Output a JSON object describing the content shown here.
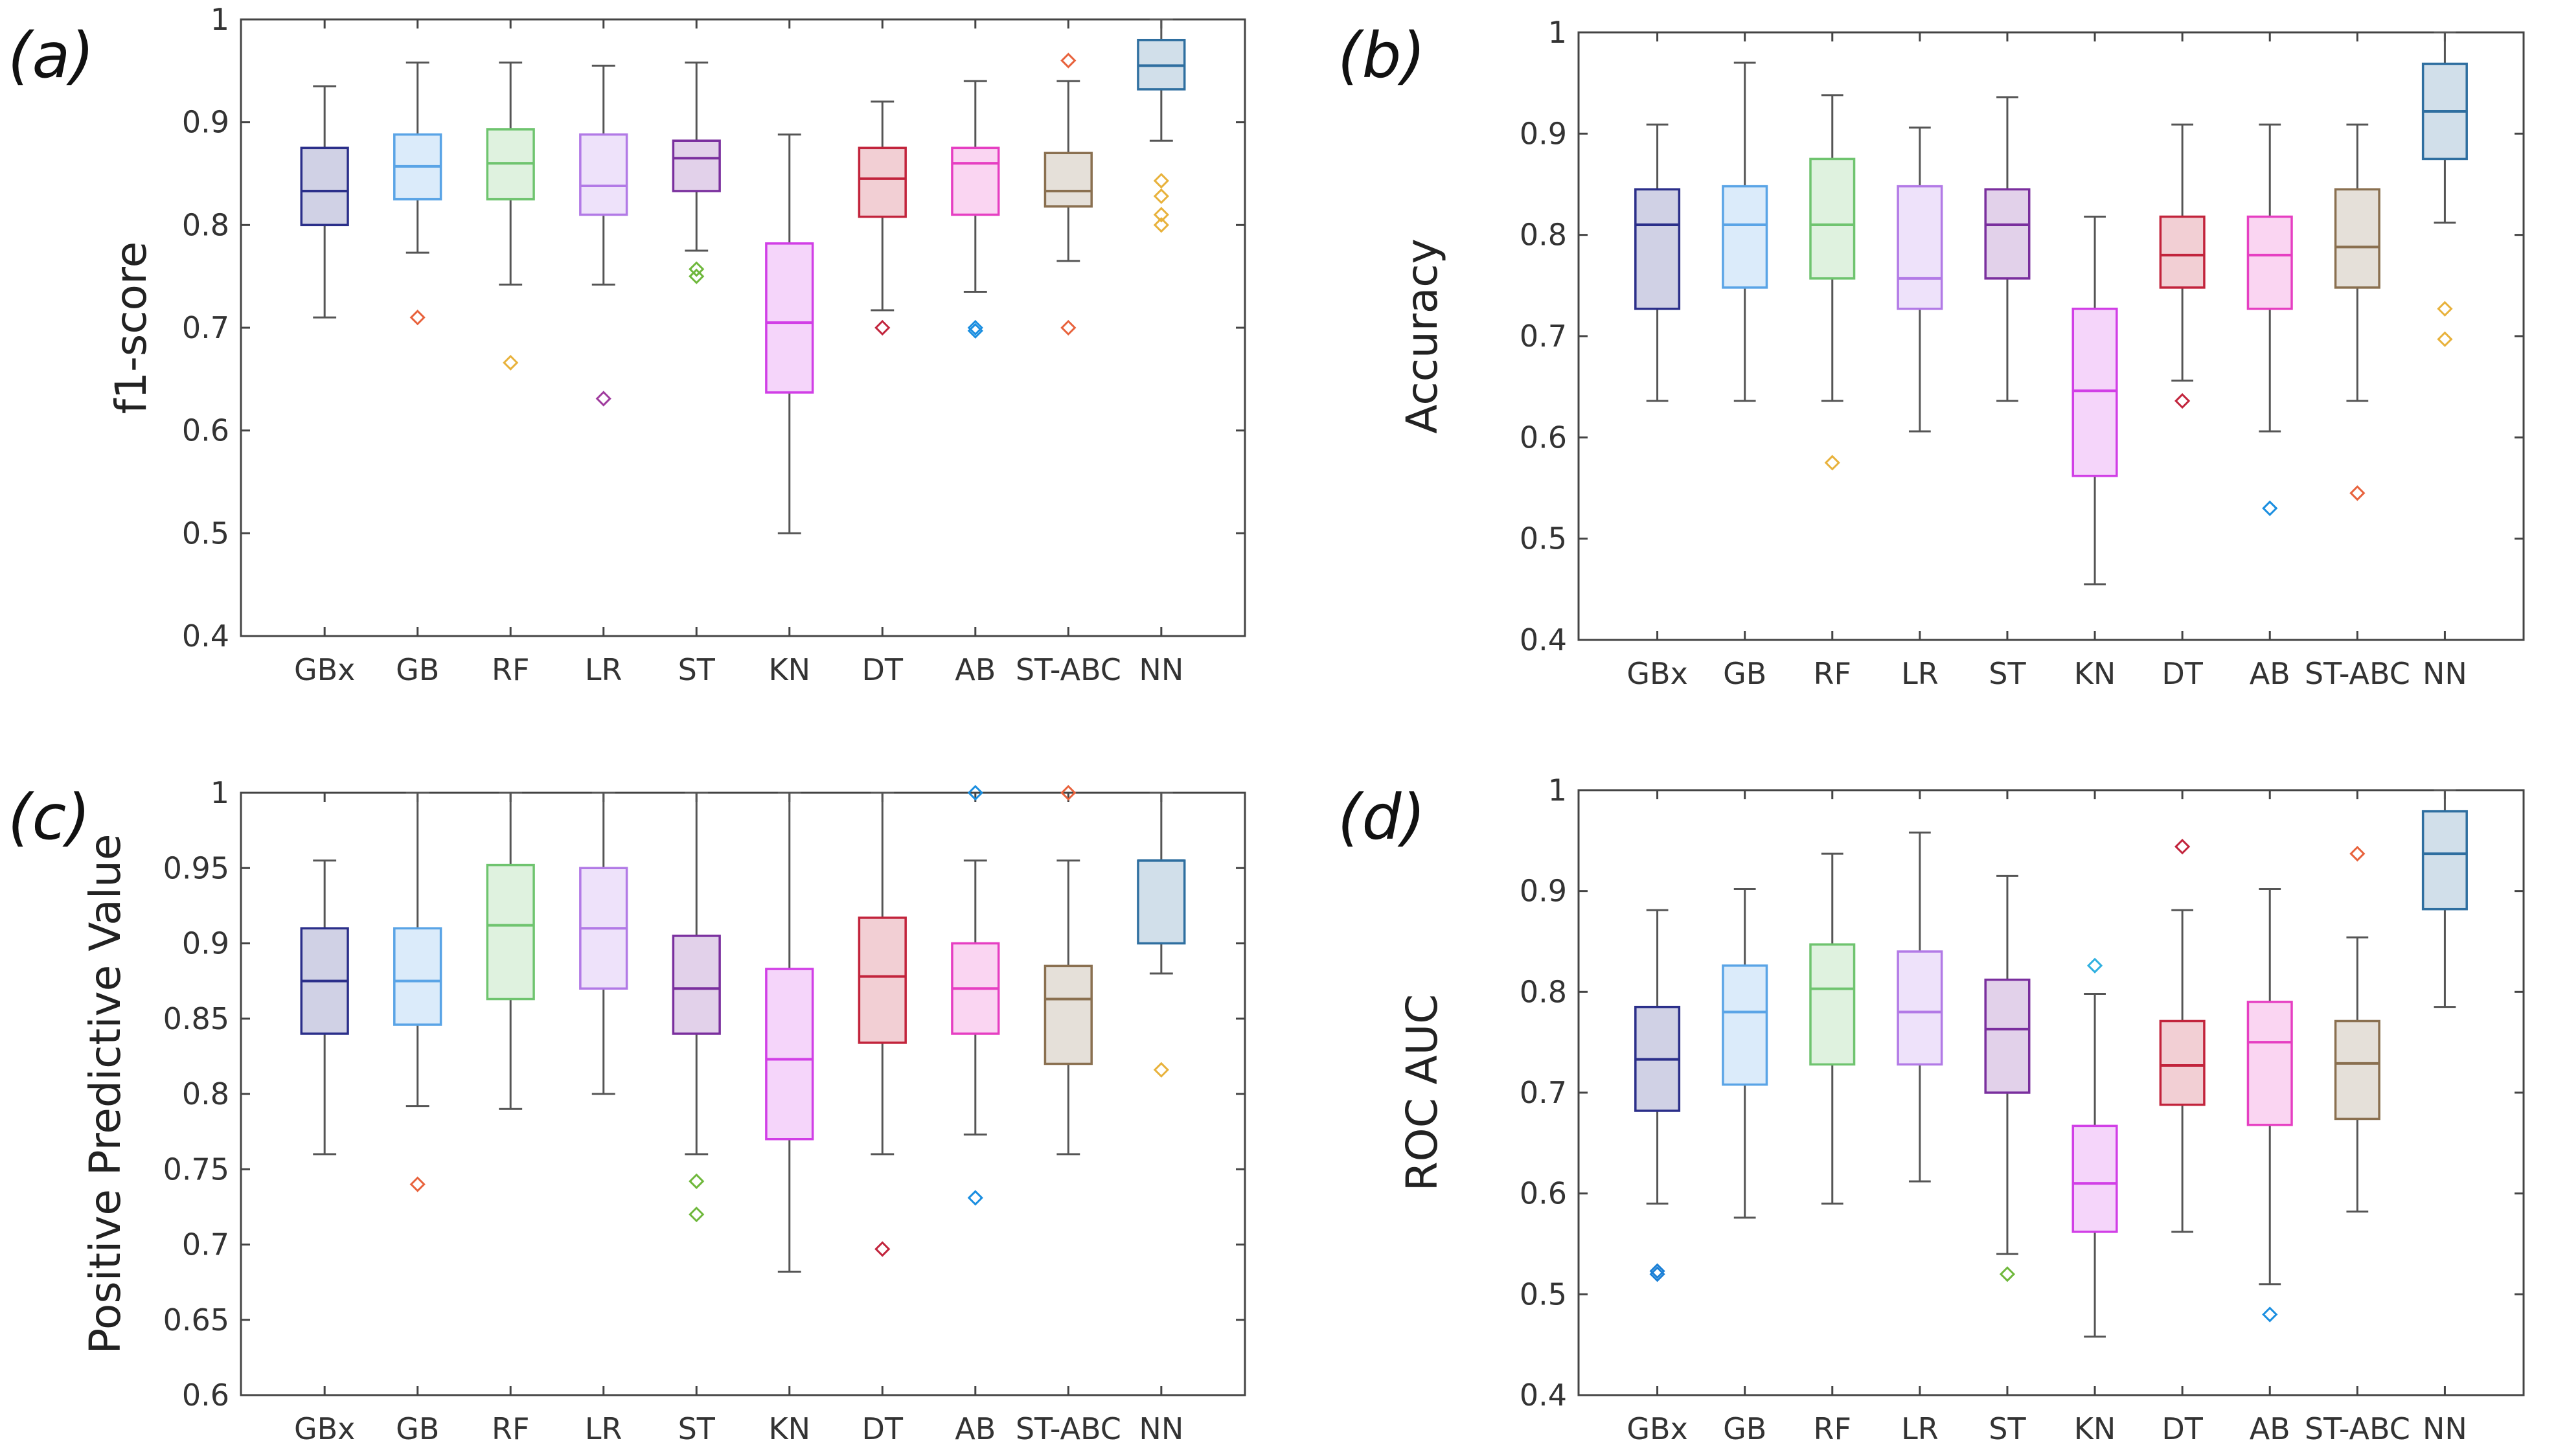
{
  "colors": {
    "GBx": "#2b2f8a",
    "GB": "#5aa4e6",
    "RF": "#6fc46f",
    "LR": "#b27ae6",
    "ST": "#7a2f9e",
    "KN": "#d13fe6",
    "DT": "#c2243c",
    "AB": "#e63fc2",
    "ST-ABC": "#8a7050",
    "NN": "#2f6fa0"
  },
  "outlier_colors": {
    "GBx": "#1a7fd6",
    "GB": "#e8623c",
    "RF": "#e8b23c",
    "LR": "#a03c9e",
    "ST": "#6fb83c",
    "KN": "#2fb0e0",
    "DT": "#c2243c",
    "AB": "#1a8ee0",
    "ST-ABC": "#e8623c",
    "NN": "#e8b23c"
  },
  "chart_data": [
    {
      "panel": "(a)",
      "type": "box",
      "ylabel": "f1-score",
      "ylim": [
        0.4,
        1
      ],
      "yticks": [
        0.4,
        0.5,
        0.6,
        0.7,
        0.8,
        0.9,
        1
      ],
      "ytick_labels": [
        "0.4",
        "0.5",
        "0.6",
        "0.7",
        "0.8",
        "0.9",
        "1"
      ],
      "categories": [
        "GBx",
        "GB",
        "RF",
        "LR",
        "ST",
        "KN",
        "DT",
        "AB",
        "ST-ABC",
        "NN"
      ],
      "boxes": [
        {
          "min": 0.71,
          "q1": 0.8,
          "median": 0.833,
          "q3": 0.875,
          "max": 0.935,
          "outliers": []
        },
        {
          "min": 0.773,
          "q1": 0.825,
          "median": 0.857,
          "q3": 0.888,
          "max": 0.958,
          "outliers": [
            0.71
          ]
        },
        {
          "min": 0.742,
          "q1": 0.825,
          "median": 0.86,
          "q3": 0.893,
          "max": 0.958,
          "outliers": [
            0.666
          ]
        },
        {
          "min": 0.742,
          "q1": 0.81,
          "median": 0.838,
          "q3": 0.888,
          "max": 0.955,
          "outliers": [
            0.631
          ]
        },
        {
          "min": 0.775,
          "q1": 0.833,
          "median": 0.865,
          "q3": 0.882,
          "max": 0.958,
          "outliers": [
            0.757,
            0.75
          ]
        },
        {
          "min": 0.5,
          "q1": 0.637,
          "median": 0.705,
          "q3": 0.782,
          "max": 0.888,
          "outliers": []
        },
        {
          "min": 0.717,
          "q1": 0.808,
          "median": 0.845,
          "q3": 0.875,
          "max": 0.92,
          "outliers": [
            0.7
          ]
        },
        {
          "min": 0.735,
          "q1": 0.81,
          "median": 0.86,
          "q3": 0.875,
          "max": 0.94,
          "outliers": [
            0.7,
            0.697
          ]
        },
        {
          "min": 0.765,
          "q1": 0.818,
          "median": 0.833,
          "q3": 0.87,
          "max": 0.94,
          "outliers": [
            0.96,
            0.7
          ]
        },
        {
          "min": 0.882,
          "q1": 0.932,
          "median": 0.955,
          "q3": 0.98,
          "max": 1.0,
          "outliers": [
            0.843,
            0.828,
            0.81,
            0.8
          ]
        }
      ]
    },
    {
      "panel": "(b)",
      "type": "box",
      "ylabel": "Accuracy",
      "ylim": [
        0.4,
        1
      ],
      "yticks": [
        0.4,
        0.5,
        0.6,
        0.7,
        0.8,
        0.9,
        1
      ],
      "ytick_labels": [
        "0.4",
        "0.5",
        "0.6",
        "0.7",
        "0.8",
        "0.9",
        "1"
      ],
      "categories": [
        "GBx",
        "GB",
        "RF",
        "LR",
        "ST",
        "KN",
        "DT",
        "AB",
        "ST-ABC",
        "NN"
      ],
      "boxes": [
        {
          "min": 0.636,
          "q1": 0.727,
          "median": 0.81,
          "q3": 0.845,
          "max": 0.909,
          "outliers": []
        },
        {
          "min": 0.636,
          "q1": 0.748,
          "median": 0.81,
          "q3": 0.848,
          "max": 0.97,
          "outliers": []
        },
        {
          "min": 0.636,
          "q1": 0.757,
          "median": 0.81,
          "q3": 0.875,
          "max": 0.938,
          "outliers": [
            0.575
          ]
        },
        {
          "min": 0.606,
          "q1": 0.727,
          "median": 0.757,
          "q3": 0.848,
          "max": 0.906,
          "outliers": []
        },
        {
          "min": 0.636,
          "q1": 0.757,
          "median": 0.81,
          "q3": 0.845,
          "max": 0.936,
          "outliers": []
        },
        {
          "min": 0.455,
          "q1": 0.562,
          "median": 0.646,
          "q3": 0.727,
          "max": 0.818,
          "outliers": []
        },
        {
          "min": 0.656,
          "q1": 0.748,
          "median": 0.78,
          "q3": 0.818,
          "max": 0.909,
          "outliers": [
            0.636
          ]
        },
        {
          "min": 0.606,
          "q1": 0.727,
          "median": 0.78,
          "q3": 0.818,
          "max": 0.909,
          "outliers": [
            0.53
          ]
        },
        {
          "min": 0.636,
          "q1": 0.748,
          "median": 0.788,
          "q3": 0.845,
          "max": 0.909,
          "outliers": [
            0.545
          ]
        },
        {
          "min": 0.812,
          "q1": 0.875,
          "median": 0.922,
          "q3": 0.969,
          "max": 1.0,
          "outliers": [
            0.727,
            0.697
          ]
        }
      ]
    },
    {
      "panel": "(c)",
      "type": "box",
      "ylabel": "Positive Predictive Value",
      "ylim": [
        0.6,
        1
      ],
      "yticks": [
        0.6,
        0.65,
        0.7,
        0.75,
        0.8,
        0.85,
        0.9,
        0.95,
        1
      ],
      "ytick_labels": [
        "0.6",
        "0.65",
        "0.7",
        "0.75",
        "0.8",
        "0.85",
        "0.9",
        "0.95",
        "1"
      ],
      "categories": [
        "GBx",
        "GB",
        "RF",
        "LR",
        "ST",
        "KN",
        "DT",
        "AB",
        "ST-ABC",
        "NN"
      ],
      "boxes": [
        {
          "min": 0.76,
          "q1": 0.84,
          "median": 0.875,
          "q3": 0.91,
          "max": 0.955,
          "outliers": []
        },
        {
          "min": 0.792,
          "q1": 0.846,
          "median": 0.875,
          "q3": 0.91,
          "max": 1.0,
          "outliers": [
            0.74
          ]
        },
        {
          "min": 0.79,
          "q1": 0.863,
          "median": 0.912,
          "q3": 0.952,
          "max": 1.0,
          "outliers": []
        },
        {
          "min": 0.8,
          "q1": 0.87,
          "median": 0.91,
          "q3": 0.95,
          "max": 1.0,
          "outliers": []
        },
        {
          "min": 0.76,
          "q1": 0.84,
          "median": 0.87,
          "q3": 0.905,
          "max": 1.0,
          "outliers": [
            0.742,
            0.72
          ]
        },
        {
          "min": 0.682,
          "q1": 0.77,
          "median": 0.823,
          "q3": 0.883,
          "max": 1.0,
          "outliers": []
        },
        {
          "min": 0.76,
          "q1": 0.834,
          "median": 0.878,
          "q3": 0.917,
          "max": 1.0,
          "outliers": [
            0.697
          ]
        },
        {
          "min": 0.773,
          "q1": 0.84,
          "median": 0.87,
          "q3": 0.9,
          "max": 0.955,
          "outliers": [
            1.0,
            0.731
          ]
        },
        {
          "min": 0.76,
          "q1": 0.82,
          "median": 0.863,
          "q3": 0.885,
          "max": 0.955,
          "outliers": [
            1.0
          ]
        },
        {
          "min": 0.88,
          "q1": 0.9,
          "median": 0.955,
          "q3": 0.955,
          "max": 1.0,
          "outliers": [
            0.816
          ]
        }
      ]
    },
    {
      "panel": "(d)",
      "type": "box",
      "ylabel": "ROC AUC",
      "ylim": [
        0.4,
        1
      ],
      "yticks": [
        0.4,
        0.5,
        0.6,
        0.7,
        0.8,
        0.9,
        1
      ],
      "ytick_labels": [
        "0.4",
        "0.5",
        "0.6",
        "0.7",
        "0.8",
        "0.9",
        "1"
      ],
      "categories": [
        "GBx",
        "GB",
        "RF",
        "LR",
        "ST",
        "KN",
        "DT",
        "AB",
        "ST-ABC",
        "NN"
      ],
      "boxes": [
        {
          "min": 0.59,
          "q1": 0.682,
          "median": 0.733,
          "q3": 0.785,
          "max": 0.881,
          "outliers": [
            0.523,
            0.52
          ]
        },
        {
          "min": 0.576,
          "q1": 0.708,
          "median": 0.78,
          "q3": 0.826,
          "max": 0.902,
          "outliers": []
        },
        {
          "min": 0.59,
          "q1": 0.728,
          "median": 0.803,
          "q3": 0.847,
          "max": 0.937,
          "outliers": []
        },
        {
          "min": 0.612,
          "q1": 0.728,
          "median": 0.78,
          "q3": 0.84,
          "max": 0.958,
          "outliers": []
        },
        {
          "min": 0.54,
          "q1": 0.7,
          "median": 0.763,
          "q3": 0.812,
          "max": 0.915,
          "outliers": [
            0.52
          ]
        },
        {
          "min": 0.458,
          "q1": 0.562,
          "median": 0.61,
          "q3": 0.667,
          "max": 0.798,
          "outliers": [
            0.826
          ]
        },
        {
          "min": 0.562,
          "q1": 0.688,
          "median": 0.727,
          "q3": 0.771,
          "max": 0.881,
          "outliers": [
            0.944
          ]
        },
        {
          "min": 0.51,
          "q1": 0.668,
          "median": 0.75,
          "q3": 0.79,
          "max": 0.902,
          "outliers": [
            0.48
          ]
        },
        {
          "min": 0.582,
          "q1": 0.674,
          "median": 0.729,
          "q3": 0.771,
          "max": 0.854,
          "outliers": [
            0.937
          ]
        },
        {
          "min": 0.785,
          "q1": 0.882,
          "median": 0.937,
          "q3": 0.979,
          "max": 1.0,
          "outliers": []
        }
      ]
    }
  ]
}
